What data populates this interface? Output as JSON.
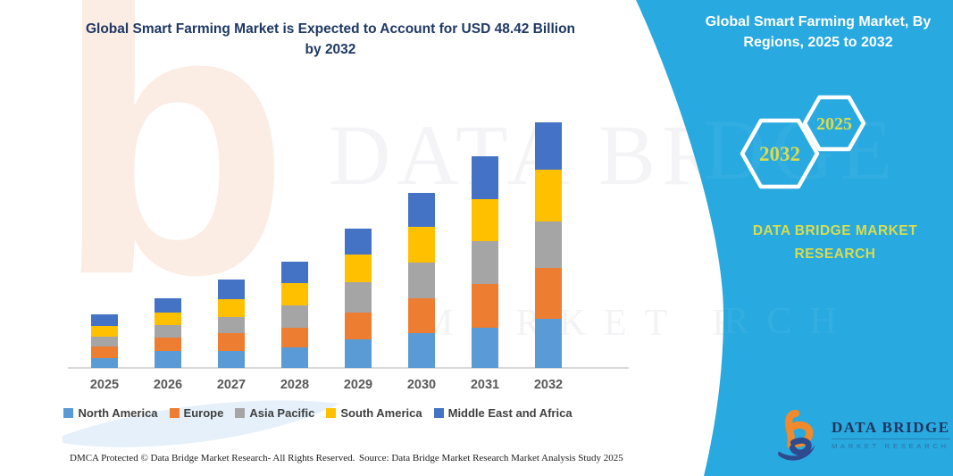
{
  "header": {
    "title_line1": "Global Smart Farming Market is Expected to Account for USD 48.42 Billion",
    "title_line2": "by 2032"
  },
  "chart_data": {
    "type": "bar",
    "stacked": true,
    "title": "Global Smart Farming Market is Expected to Account for USD 48.42 Billion by 2032",
    "unit": "USD Billion",
    "categories": [
      "2025",
      "2026",
      "2027",
      "2028",
      "2029",
      "2030",
      "2031",
      "2032"
    ],
    "series": [
      {
        "name": "North America",
        "color": "#5B9BD5",
        "values": [
          1.9,
          3.3,
          3.3,
          4.1,
          5.6,
          6.8,
          8.0,
          9.6
        ]
      },
      {
        "name": "Europe",
        "color": "#ED7D31",
        "values": [
          2.3,
          2.6,
          3.5,
          3.9,
          5.3,
          7.0,
          8.6,
          10.1
        ]
      },
      {
        "name": "Asia Pacific",
        "color": "#A5A5A5",
        "values": [
          1.9,
          2.5,
          3.3,
          4.4,
          6.0,
          6.9,
          8.3,
          9.1
        ]
      },
      {
        "name": "South America",
        "color": "#FFC000",
        "values": [
          2.1,
          2.5,
          3.4,
          4.3,
          5.5,
          7.1,
          8.3,
          10.2
        ]
      },
      {
        "name": "Middle East and Africa",
        "color": "#4472C4",
        "values": [
          2.3,
          2.8,
          3.9,
          4.2,
          5.1,
          6.7,
          8.5,
          9.4
        ]
      }
    ],
    "totals": [
      10.5,
      13.7,
      17.4,
      20.9,
      27.5,
      34.5,
      41.7,
      48.4
    ],
    "legend_position": "bottom",
    "gridlines": false,
    "axis_label_color": "#595959"
  },
  "side_panel": {
    "title": "Global Smart Farming Market, By Regions, 2025 to 2032",
    "hexagon_back_label": "2032",
    "hexagon_front_label": "2025",
    "brand_text": "DATA BRIDGE MARKET RESEARCH",
    "background_color": "#28A9E0",
    "accent_color": "#D8DC4E"
  },
  "logo": {
    "name": "DATA BRIDGE",
    "tagline": "MARKET RESEARCH"
  },
  "footer": {
    "dmca_text": "DMCA Protected © Data Bridge Market Research-  All Rights Reserved.",
    "source_text": "Source: Data Bridge Market Research  Market Analysis Study 2025"
  },
  "watermarks": {
    "chart_text_top": "DATA BRI",
    "chart_text_bottom": "MARKET RESE",
    "panel_text_top": "DGE",
    "panel_text_bottom": "ARCH"
  }
}
